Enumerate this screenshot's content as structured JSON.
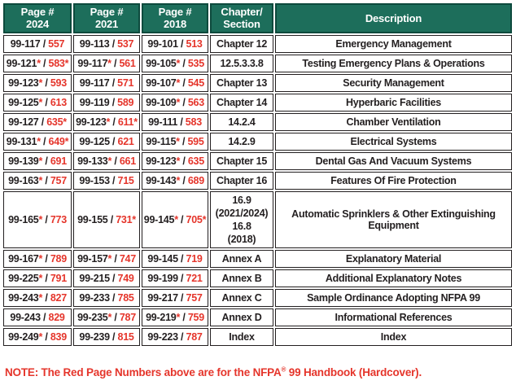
{
  "colors": {
    "header_green": "#1d6e5b",
    "header_border": "#0d4a3d",
    "red_accent": "#e5352b",
    "ink": "#231f20"
  },
  "table": {
    "header_keys": [
      "page-2024",
      "page-2021",
      "page-2018",
      "chapter-section",
      "description"
    ],
    "headers": [
      {
        "line1": "Page #",
        "line2": "2024"
      },
      {
        "line1": "Page #",
        "line2": "2021"
      },
      {
        "line1": "Page #",
        "line2": "2018"
      },
      {
        "line1": "Chapter/",
        "line2": "Section"
      },
      {
        "line1": "Description",
        "line2": ""
      }
    ],
    "rows": [
      {
        "p2024": {
          "n": "99-117",
          "na": false,
          "r": "557",
          "ra": false
        },
        "p2021": {
          "n": "99-113",
          "na": false,
          "r": "537",
          "ra": false
        },
        "p2018": {
          "n": "99-101",
          "na": false,
          "r": "513",
          "ra": false
        },
        "chapter": [
          {
            "text": "Chapter 12",
            "bold": false
          }
        ],
        "description": "Emergency Management"
      },
      {
        "p2024": {
          "n": "99-121",
          "na": true,
          "r": "583",
          "ra": true
        },
        "p2021": {
          "n": "99-117",
          "na": true,
          "r": "561",
          "ra": false
        },
        "p2018": {
          "n": "99-105",
          "na": true,
          "r": "535",
          "ra": false
        },
        "chapter": [
          {
            "text": "12.5.3.3.8",
            "bold": false
          }
        ],
        "description": "Testing Emergency Plans & Operations"
      },
      {
        "p2024": {
          "n": "99-123",
          "na": true,
          "r": "593",
          "ra": false
        },
        "p2021": {
          "n": "99-117",
          "na": false,
          "r": "571",
          "ra": false
        },
        "p2018": {
          "n": "99-107",
          "na": true,
          "r": "545",
          "ra": false
        },
        "chapter": [
          {
            "text": "Chapter 13",
            "bold": false
          }
        ],
        "description": "Security Management"
      },
      {
        "p2024": {
          "n": "99-125",
          "na": true,
          "r": "613",
          "ra": false
        },
        "p2021": {
          "n": "99-119",
          "na": false,
          "r": "589",
          "ra": false
        },
        "p2018": {
          "n": "99-109",
          "na": true,
          "r": "563",
          "ra": false
        },
        "chapter": [
          {
            "text": "Chapter 14",
            "bold": false
          }
        ],
        "description": "Hyperbaric Facilities"
      },
      {
        "p2024": {
          "n": "99-127",
          "na": false,
          "r": "635",
          "ra": true
        },
        "p2021": {
          "n": "99-123",
          "na": true,
          "r": "611",
          "ra": true
        },
        "p2018": {
          "n": "99-111",
          "na": false,
          "r": "583",
          "ra": false
        },
        "chapter": [
          {
            "text": "14.2.4",
            "bold": false
          }
        ],
        "description": "Chamber Ventilation"
      },
      {
        "p2024": {
          "n": "99-131",
          "na": true,
          "r": "649",
          "ra": true
        },
        "p2021": {
          "n": "99-125",
          "na": false,
          "r": "621",
          "ra": false
        },
        "p2018": {
          "n": "99-115",
          "na": true,
          "r": "595",
          "ra": false
        },
        "chapter": [
          {
            "text": "14.2.9",
            "bold": false
          }
        ],
        "description": "Electrical Systems"
      },
      {
        "p2024": {
          "n": "99-139",
          "na": true,
          "r": "691",
          "ra": false
        },
        "p2021": {
          "n": "99-133",
          "na": true,
          "r": "661",
          "ra": false
        },
        "p2018": {
          "n": "99-123",
          "na": true,
          "r": "635",
          "ra": false
        },
        "chapter": [
          {
            "text": "Chapter 15",
            "bold": false
          }
        ],
        "description": "Dental Gas And Vacuum Systems"
      },
      {
        "p2024": {
          "n": "99-163",
          "na": true,
          "r": "757",
          "ra": false
        },
        "p2021": {
          "n": "99-153",
          "na": false,
          "r": "715",
          "ra": false
        },
        "p2018": {
          "n": "99-143",
          "na": true,
          "r": "689",
          "ra": false
        },
        "chapter": [
          {
            "text": "Chapter 16",
            "bold": false
          }
        ],
        "description": "Features Of Fire Protection"
      },
      {
        "p2024": {
          "n": "99-165",
          "na": true,
          "r": "773",
          "ra": false
        },
        "p2021": {
          "n": "99-155",
          "na": false,
          "r": "731",
          "ra": true
        },
        "p2018": {
          "n": "99-145",
          "na": true,
          "r": "705",
          "ra": true
        },
        "chapter": [
          {
            "text": "16.9",
            "bold": false
          },
          {
            "text": "(2021/2024)",
            "bold": true
          },
          {
            "text": "16.8",
            "bold": false
          },
          {
            "text": "(2018)",
            "bold": true
          }
        ],
        "description": "Automatic Sprinklers & Other Extinguishing Equipment"
      },
      {
        "p2024": {
          "n": "99-167",
          "na": true,
          "r": "789",
          "ra": false
        },
        "p2021": {
          "n": "99-157",
          "na": true,
          "r": "747",
          "ra": false
        },
        "p2018": {
          "n": "99-145",
          "na": false,
          "r": "719",
          "ra": false
        },
        "chapter": [
          {
            "text": "Annex A",
            "bold": false
          }
        ],
        "description": "Explanatory Material"
      },
      {
        "p2024": {
          "n": "99-225",
          "na": true,
          "r": "791",
          "ra": false
        },
        "p2021": {
          "n": "99-215",
          "na": false,
          "r": "749",
          "ra": false
        },
        "p2018": {
          "n": "99-199",
          "na": false,
          "r": "721",
          "ra": false
        },
        "chapter": [
          {
            "text": "Annex B",
            "bold": false
          }
        ],
        "description": "Additional Explanatory Notes"
      },
      {
        "p2024": {
          "n": "99-243",
          "na": true,
          "r": "827",
          "ra": false
        },
        "p2021": {
          "n": "99-233",
          "na": false,
          "r": "785",
          "ra": false
        },
        "p2018": {
          "n": "99-217",
          "na": false,
          "r": "757",
          "ra": false
        },
        "chapter": [
          {
            "text": "Annex C",
            "bold": false
          }
        ],
        "description": "Sample Ordinance Adopting NFPA 99"
      },
      {
        "p2024": {
          "n": "99-243",
          "na": false,
          "r": "829",
          "ra": false
        },
        "p2021": {
          "n": "99-235",
          "na": true,
          "r": "787",
          "ra": false
        },
        "p2018": {
          "n": "99-219",
          "na": true,
          "r": "759",
          "ra": false
        },
        "chapter": [
          {
            "text": "Annex D",
            "bold": false
          }
        ],
        "description": "Informational References"
      },
      {
        "p2024": {
          "n": "99-249",
          "na": true,
          "r": "839",
          "ra": false
        },
        "p2021": {
          "n": "99-239",
          "na": false,
          "r": "815",
          "ra": false
        },
        "p2018": {
          "n": "99-223",
          "na": false,
          "r": "787",
          "ra": false
        },
        "chapter": [
          {
            "text": "Index",
            "bold": false
          }
        ],
        "description": "Index"
      }
    ],
    "separator": " / ",
    "asterisk": "*"
  },
  "note": {
    "prefix": "NOTE: The Red Page Numbers above are for the NFPA",
    "reg": "®",
    "suffix": " 99 Handbook (Hardcover)."
  }
}
